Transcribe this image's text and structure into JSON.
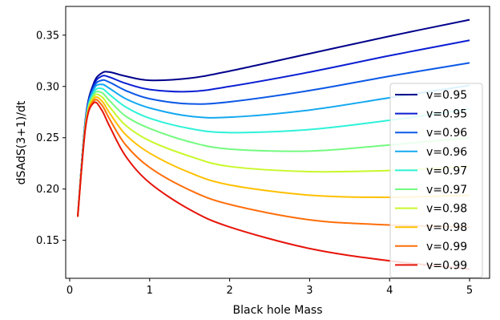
{
  "chart_data": {
    "type": "line",
    "title": "",
    "xlabel": "Black hole Mass",
    "ylabel": "dSAdS(3+1)/dt",
    "xlim": [
      -0.05,
      5.25
    ],
    "ylim": [
      0.113,
      0.378
    ],
    "xticks": [
      0,
      1,
      2,
      3,
      4,
      5
    ],
    "xtick_labels": [
      "0",
      "1",
      "2",
      "3",
      "4",
      "5"
    ],
    "yticks": [
      0.15,
      0.2,
      0.25,
      0.3,
      0.35
    ],
    "ytick_labels": [
      "0.15",
      "0.20",
      "0.25",
      "0.30",
      "0.35"
    ],
    "grid": false,
    "legend_position": "right",
    "x": [
      0.1,
      0.2,
      0.3,
      0.4,
      0.5,
      0.7,
      1.0,
      1.5,
      2.0,
      3.0,
      4.0,
      5.0
    ],
    "series": [
      {
        "name": "v=0.95",
        "color": "#00008b",
        "values": [
          0.173,
          0.27,
          0.303,
          0.313,
          0.314,
          0.31,
          0.306,
          0.308,
          0.315,
          0.332,
          0.349,
          0.365
        ]
      },
      {
        "name": "v=0.95",
        "color": "#0a1ed2",
        "values": [
          0.173,
          0.269,
          0.301,
          0.31,
          0.309,
          0.303,
          0.297,
          0.295,
          0.3,
          0.314,
          0.33,
          0.345
        ]
      },
      {
        "name": "v=0.96",
        "color": "#0b58e6",
        "values": [
          0.173,
          0.268,
          0.299,
          0.306,
          0.304,
          0.296,
          0.288,
          0.283,
          0.285,
          0.296,
          0.31,
          0.323
        ]
      },
      {
        "name": "v=0.96",
        "color": "#14a8f0",
        "values": [
          0.173,
          0.267,
          0.297,
          0.302,
          0.298,
          0.288,
          0.279,
          0.271,
          0.27,
          0.277,
          0.289,
          0.301
        ]
      },
      {
        "name": "v=0.97",
        "color": "#2ef2d8",
        "values": [
          0.173,
          0.266,
          0.294,
          0.298,
          0.292,
          0.28,
          0.269,
          0.259,
          0.255,
          0.258,
          0.267,
          0.278
        ]
      },
      {
        "name": "v=0.97",
        "color": "#74fa80",
        "values": [
          0.173,
          0.265,
          0.292,
          0.294,
          0.286,
          0.271,
          0.259,
          0.246,
          0.239,
          0.237,
          0.243,
          0.25
        ]
      },
      {
        "name": "v=0.98",
        "color": "#c8f82a",
        "values": [
          0.173,
          0.264,
          0.29,
          0.29,
          0.28,
          0.262,
          0.247,
          0.232,
          0.222,
          0.217,
          0.218,
          0.222
        ]
      },
      {
        "name": "v=0.98",
        "color": "#ffc000",
        "values": [
          0.173,
          0.263,
          0.288,
          0.286,
          0.274,
          0.253,
          0.235,
          0.216,
          0.204,
          0.194,
          0.192,
          0.194
        ]
      },
      {
        "name": "v=0.99",
        "color": "#ff6e0a",
        "values": [
          0.173,
          0.262,
          0.286,
          0.282,
          0.268,
          0.243,
          0.221,
          0.199,
          0.185,
          0.17,
          0.165,
          0.163
        ]
      },
      {
        "name": "v=0.99",
        "color": "#e6140a",
        "values": [
          0.173,
          0.261,
          0.284,
          0.277,
          0.261,
          0.232,
          0.206,
          0.18,
          0.163,
          0.142,
          0.13,
          0.122
        ]
      }
    ]
  }
}
